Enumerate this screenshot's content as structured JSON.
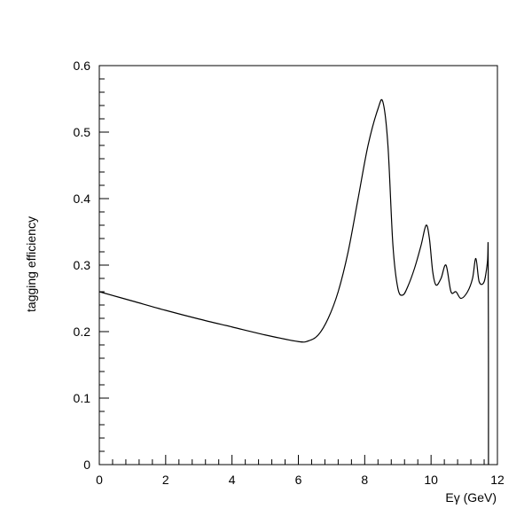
{
  "chart_data": {
    "type": "line",
    "xlabel": "Eγ (GeV)",
    "ylabel": "tagging efficiency",
    "xlim": [
      0,
      12
    ],
    "ylim": [
      0,
      0.6
    ],
    "grid": false,
    "x_major_ticks": [
      0,
      2,
      4,
      6,
      8,
      10,
      12
    ],
    "x_minor_step": 0.4,
    "y_major_ticks": [
      0,
      0.1,
      0.2,
      0.3,
      0.4,
      0.5,
      0.6
    ],
    "y_minor_step": 0.02,
    "x_tick_labels": [
      "0",
      "2",
      "4",
      "6",
      "8",
      "10",
      "12"
    ],
    "y_tick_labels": [
      "0",
      "0.1",
      "0.2",
      "0.3",
      "0.4",
      "0.5",
      "0.6"
    ],
    "series": [
      {
        "x": [
          0,
          1,
          2,
          3,
          4,
          5,
          6,
          6.3,
          6.6,
          6.9,
          7.2,
          7.5,
          7.8,
          8.1,
          8.4,
          8.55,
          8.7,
          8.85,
          9.0,
          9.15,
          9.3,
          9.5,
          9.7,
          9.85,
          9.95,
          10.05,
          10.15,
          10.3,
          10.45,
          10.6,
          10.75,
          10.9,
          11.1,
          11.25,
          11.35,
          11.45,
          11.6,
          11.7,
          11.72,
          11.73,
          11.73
        ],
        "y": [
          0.26,
          0.246,
          0.232,
          0.219,
          0.207,
          0.195,
          0.185,
          0.186,
          0.195,
          0.22,
          0.26,
          0.32,
          0.4,
          0.48,
          0.535,
          0.545,
          0.48,
          0.33,
          0.265,
          0.255,
          0.268,
          0.295,
          0.33,
          0.36,
          0.34,
          0.29,
          0.27,
          0.28,
          0.3,
          0.26,
          0.26,
          0.25,
          0.26,
          0.28,
          0.31,
          0.275,
          0.275,
          0.305,
          0.325,
          0.15,
          0
        ]
      }
    ]
  }
}
